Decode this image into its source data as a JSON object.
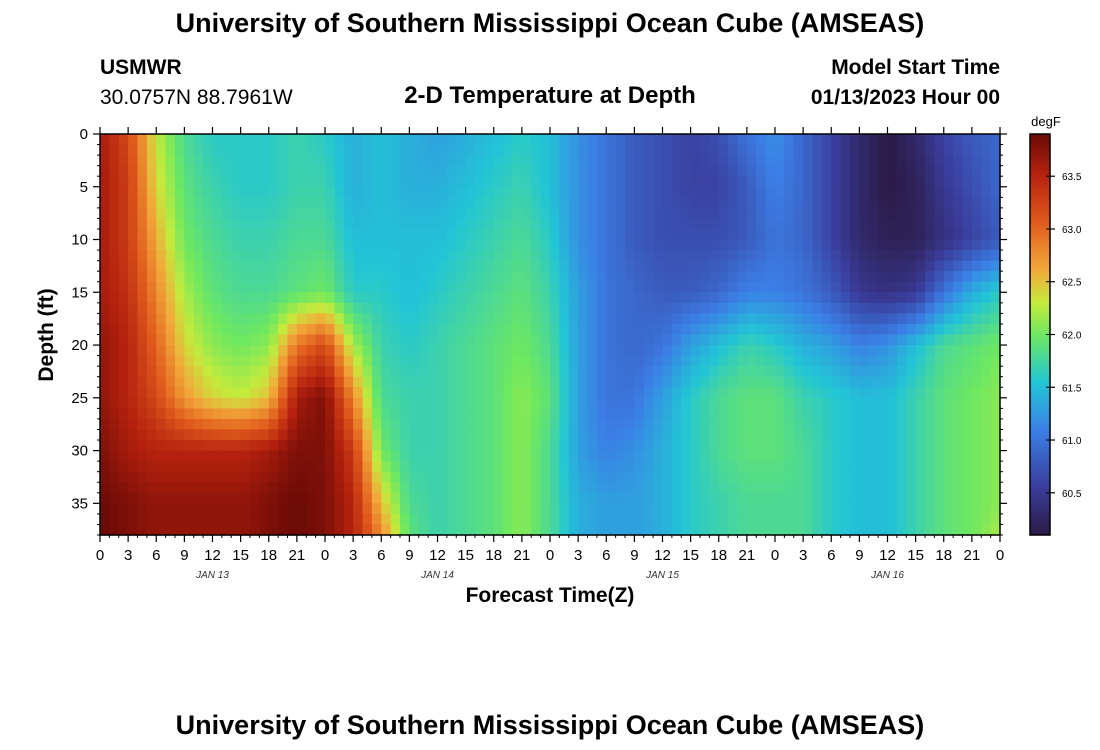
{
  "header": {
    "title": "University of Southern Mississippi Ocean Cube (AMSEAS)",
    "station": "USMWR",
    "coords": "30.0757N  88.7961W",
    "plot_title": "2-D Temperature at Depth",
    "model_start_label": "Model Start Time",
    "model_start_value": "01/13/2023 Hour 00",
    "footer_title": "University of Southern Mississippi Ocean Cube (AMSEAS)"
  },
  "chart_data": {
    "type": "heatmap",
    "title": "2-D Temperature at Depth",
    "xlabel": "Forecast Time(Z)",
    "ylabel": "Depth (ft)",
    "x_range_hours": [
      0,
      96
    ],
    "x_tick_hours": [
      0,
      3,
      6,
      9,
      12,
      15,
      18,
      21,
      24,
      27,
      30,
      33,
      36,
      39,
      42,
      45,
      48,
      51,
      54,
      57,
      60,
      63,
      66,
      69,
      72,
      75,
      78,
      81,
      84,
      87,
      90,
      93,
      96
    ],
    "x_tick_labels": [
      "0",
      "3",
      "6",
      "9",
      "12",
      "15",
      "18",
      "21",
      "0",
      "3",
      "6",
      "9",
      "12",
      "15",
      "18",
      "21",
      "0",
      "3",
      "6",
      "9",
      "12",
      "15",
      "18",
      "21",
      "0",
      "3",
      "6",
      "9",
      "12",
      "15",
      "18",
      "21",
      "0"
    ],
    "date_labels": [
      {
        "text": "JAN 13",
        "hour": 12
      },
      {
        "text": "JAN 14",
        "hour": 36
      },
      {
        "text": "JAN 15",
        "hour": 60
      },
      {
        "text": "JAN 16",
        "hour": 84
      }
    ],
    "y_range_ft": [
      0,
      38
    ],
    "y_ticks": [
      0,
      5,
      10,
      15,
      20,
      25,
      30,
      35
    ],
    "colorbar": {
      "unit": "degF",
      "min": 60.1,
      "max": 63.9,
      "ticks": [
        60.5,
        61.0,
        61.5,
        62.0,
        62.5,
        63.0,
        63.5
      ],
      "tick_labels": [
        "60.5",
        "61.0",
        "61.5",
        "62.0",
        "62.5",
        "63.0",
        "63.5"
      ]
    },
    "grid_hours": [
      0,
      3,
      6,
      9,
      12,
      15,
      18,
      21,
      24,
      27,
      30,
      33,
      36,
      39,
      42,
      45,
      48,
      51,
      54,
      57,
      60,
      63,
      66,
      69,
      72,
      75,
      78,
      81,
      84,
      87,
      90,
      93,
      96
    ],
    "grid_depths_ft": [
      0,
      5,
      10,
      15,
      20,
      25,
      30,
      35,
      38
    ],
    "temperature_degF": [
      [
        63.6,
        63.2,
        62.3,
        61.8,
        61.6,
        61.6,
        61.6,
        61.7,
        61.6,
        61.4,
        61.5,
        61.4,
        61.3,
        61.4,
        61.5,
        61.6,
        61.5,
        61.2,
        61.0,
        60.8,
        60.7,
        60.6,
        60.7,
        61.0,
        61.2,
        60.9,
        60.6,
        60.3,
        60.1,
        60.3,
        60.6,
        60.8,
        60.9
      ],
      [
        63.6,
        63.3,
        62.4,
        61.9,
        61.7,
        61.6,
        61.6,
        61.7,
        61.7,
        61.4,
        61.5,
        61.4,
        61.4,
        61.5,
        61.6,
        61.7,
        61.5,
        61.2,
        61.0,
        60.8,
        60.7,
        60.6,
        60.6,
        60.8,
        61.1,
        60.9,
        60.6,
        60.3,
        60.1,
        60.2,
        60.5,
        60.7,
        60.9
      ],
      [
        63.6,
        63.3,
        62.6,
        62.0,
        61.8,
        61.7,
        61.7,
        61.8,
        61.8,
        61.5,
        61.5,
        61.5,
        61.5,
        61.6,
        61.7,
        61.8,
        61.6,
        61.2,
        61.0,
        60.8,
        60.7,
        60.7,
        60.7,
        60.8,
        61.0,
        60.9,
        60.6,
        60.3,
        60.2,
        60.2,
        60.4,
        60.6,
        60.8
      ],
      [
        63.6,
        63.4,
        62.8,
        62.2,
        61.9,
        61.8,
        61.8,
        61.9,
        62.0,
        61.6,
        61.6,
        61.5,
        61.6,
        61.7,
        61.8,
        61.9,
        61.7,
        61.3,
        61.0,
        60.9,
        60.8,
        60.8,
        60.9,
        61.1,
        61.1,
        61.0,
        60.8,
        60.5,
        60.4,
        60.5,
        61.0,
        61.4,
        61.6
      ],
      [
        63.7,
        63.5,
        63.0,
        62.4,
        62.1,
        62.0,
        62.1,
        62.9,
        63.2,
        62.2,
        61.7,
        61.6,
        61.7,
        61.8,
        61.9,
        62.0,
        61.8,
        61.3,
        61.0,
        60.9,
        61.0,
        61.3,
        61.5,
        61.7,
        61.6,
        61.4,
        61.3,
        61.1,
        61.2,
        61.5,
        61.8,
        61.9,
        62.0
      ],
      [
        63.7,
        63.5,
        63.2,
        62.7,
        62.4,
        62.3,
        62.5,
        63.6,
        63.8,
        62.8,
        61.8,
        61.7,
        61.7,
        61.8,
        61.9,
        62.1,
        61.9,
        61.3,
        61.0,
        61.0,
        61.3,
        61.6,
        61.8,
        61.9,
        61.9,
        61.7,
        61.6,
        61.5,
        61.5,
        61.7,
        61.9,
        62.0,
        62.1
      ],
      [
        63.8,
        63.6,
        63.5,
        63.5,
        63.5,
        63.5,
        63.6,
        63.8,
        63.8,
        63.3,
        62.0,
        61.7,
        61.7,
        61.8,
        61.9,
        62.1,
        61.8,
        61.3,
        61.1,
        61.2,
        61.4,
        61.6,
        61.8,
        61.9,
        61.9,
        61.8,
        61.6,
        61.5,
        61.5,
        61.7,
        61.9,
        62.0,
        62.1
      ],
      [
        63.9,
        63.8,
        63.7,
        63.7,
        63.7,
        63.7,
        63.8,
        63.9,
        63.8,
        63.5,
        62.5,
        61.8,
        61.7,
        61.8,
        61.9,
        62.1,
        61.8,
        61.4,
        61.3,
        61.3,
        61.4,
        61.6,
        61.7,
        61.8,
        61.8,
        61.8,
        61.6,
        61.5,
        61.5,
        61.7,
        61.9,
        62.0,
        62.1
      ],
      [
        63.9,
        63.8,
        63.7,
        63.7,
        63.7,
        63.7,
        63.8,
        63.9,
        63.8,
        63.5,
        62.8,
        61.9,
        61.7,
        61.8,
        61.9,
        62.1,
        61.8,
        61.4,
        61.3,
        61.3,
        61.4,
        61.6,
        61.7,
        61.8,
        61.8,
        61.8,
        61.6,
        61.5,
        61.5,
        61.7,
        61.9,
        62.0,
        62.2
      ]
    ]
  }
}
